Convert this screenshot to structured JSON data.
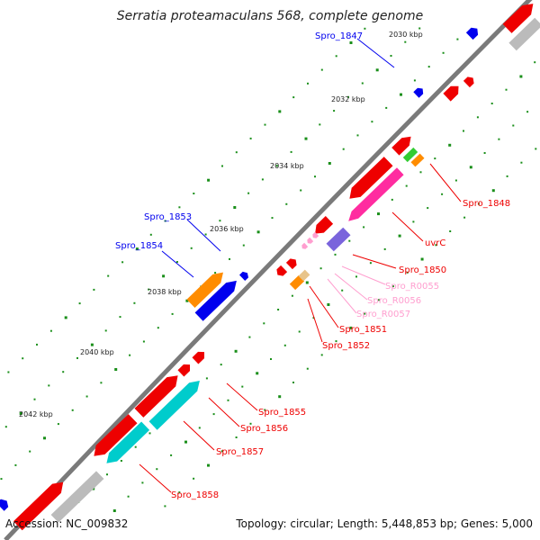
{
  "title": "Serratia proteamaculans 568, complete genome",
  "accession": "Accession: NC_009832",
  "summary": "Topology: circular; Length: 5,448,853 bp; Genes: 5,000",
  "kbp_ticks": [
    "2030 kbp",
    "2032 kbp",
    "2034 kbp",
    "2036 kbp",
    "2038 kbp",
    "2040 kbp",
    "2042 kbp"
  ],
  "gene_labels": {
    "spro_1847": "Spro_1847",
    "spro_1848": "Spro_1848",
    "uvrc": "uvrC",
    "spro_1850": "Spro_1850",
    "spro_r0055": "Spro_R0055",
    "spro_r0056": "Spro_R0056",
    "spro_r0057": "Spro_R0057",
    "spro_1851": "Spro_1851",
    "spro_1852": "Spro_1852",
    "spro_1853": "Spro_1853",
    "spro_1854": "Spro_1854",
    "spro_1855": "Spro_1855",
    "spro_1856": "Spro_1856",
    "spro_1857": "Spro_1857",
    "spro_1858": "Spro_1858"
  },
  "colors": {
    "backbone": "#7a7a7a",
    "cds": "#ee0000",
    "forward_feature": "#0000ee",
    "orange": "#ff8c00",
    "cyan": "#00cccc",
    "magenta": "#ff2ca0",
    "green": "#33cc33",
    "purple": "#7a64dc",
    "pink": "#ff9ecf",
    "tan": "#e8c48a",
    "grey_track": "#bbbbbb",
    "dots": "#1a8f1a"
  }
}
